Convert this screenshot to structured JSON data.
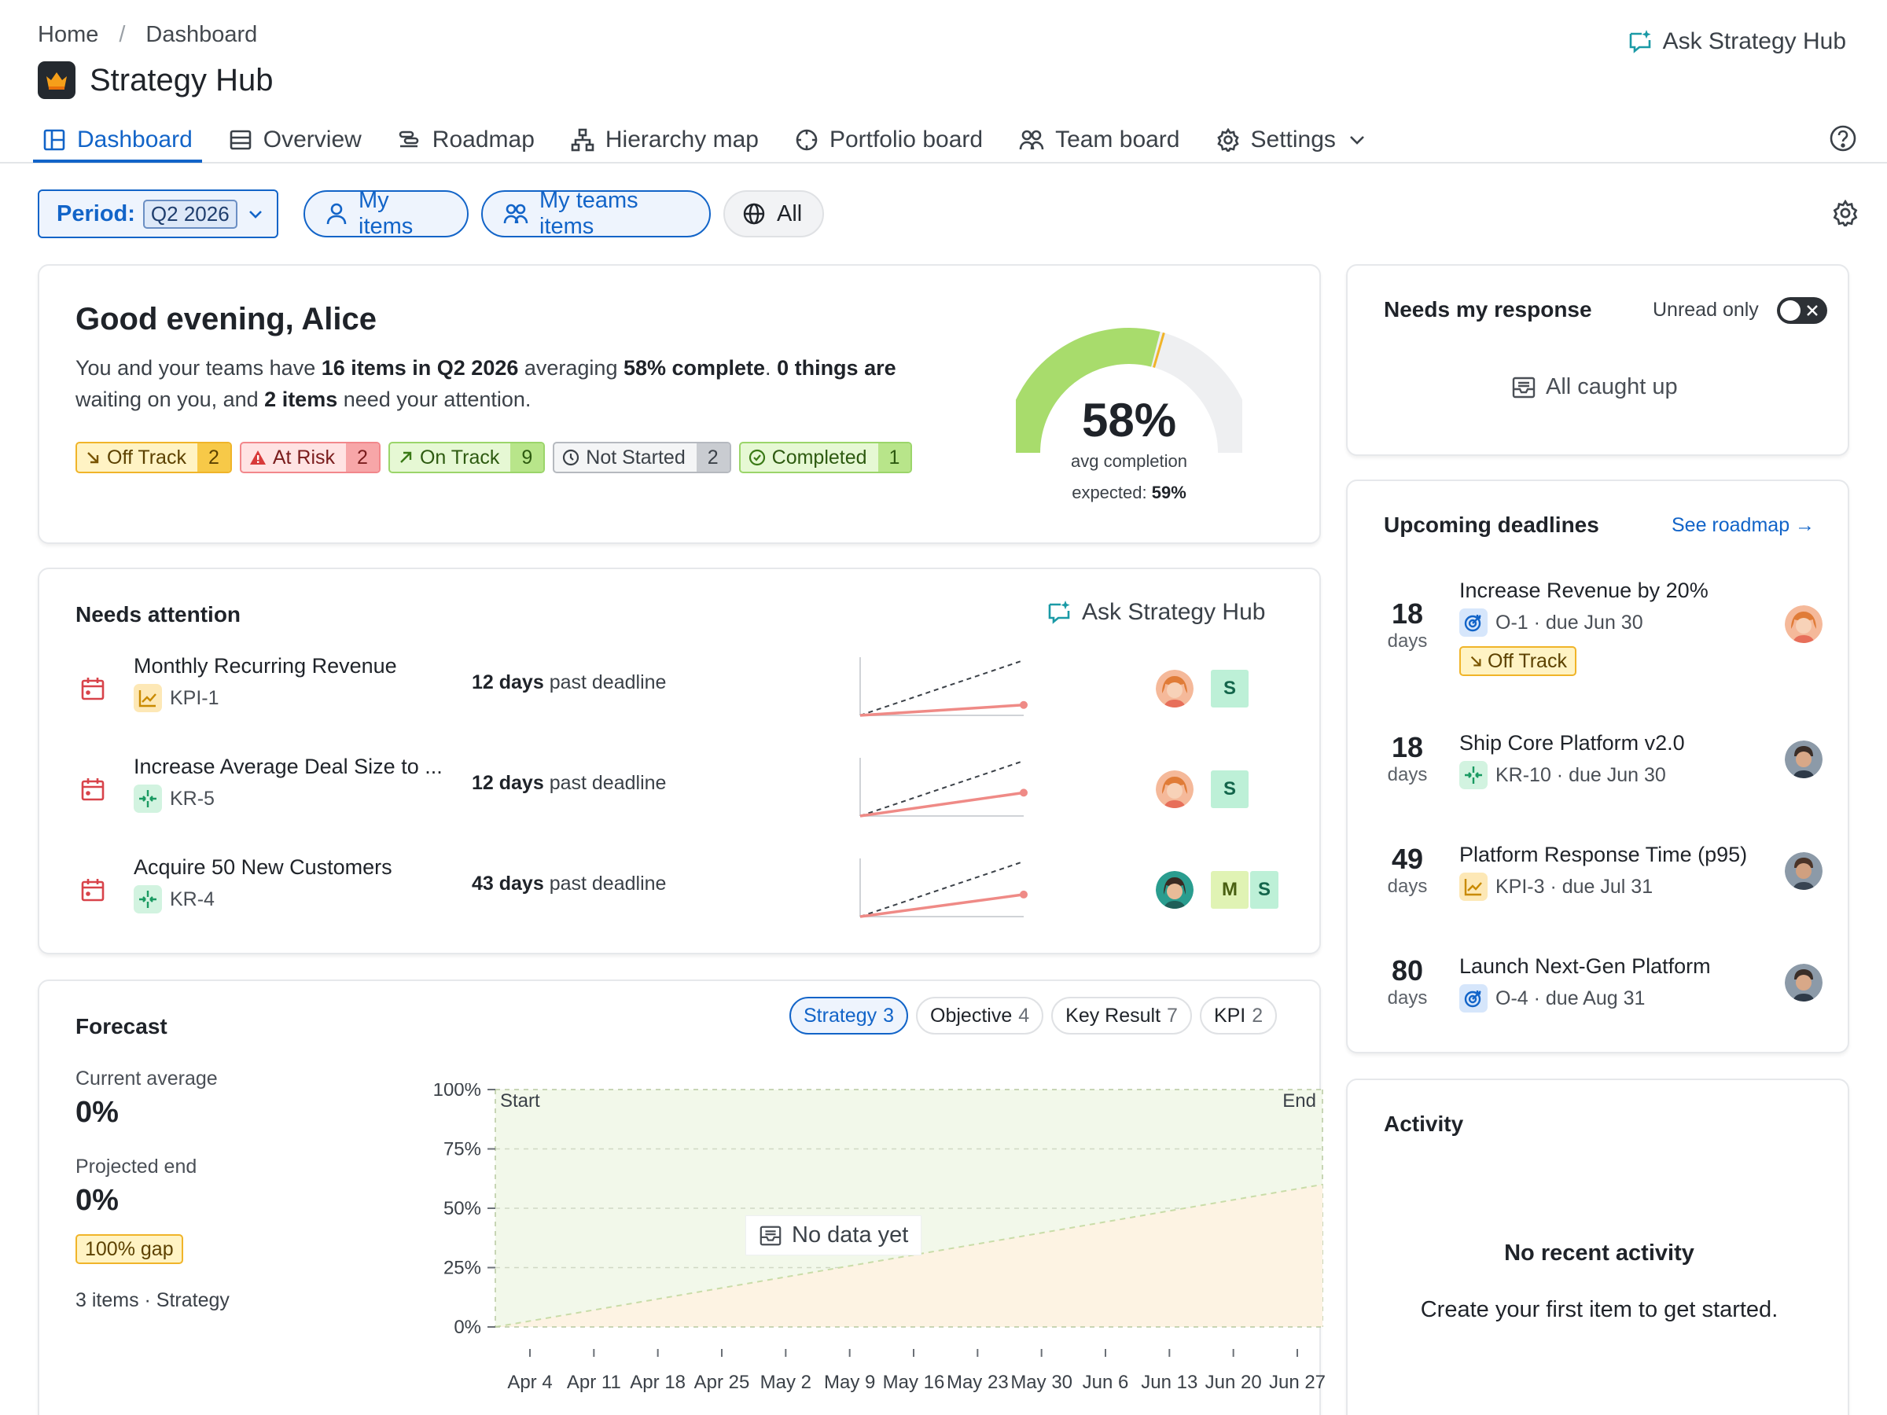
{
  "breadcrumb": [
    "Home",
    "Dashboard"
  ],
  "breadcrumb_sep": "/",
  "app": {
    "title": "Strategy Hub",
    "ask_label": "Ask Strategy Hub"
  },
  "tabs": [
    {
      "label": "Dashboard",
      "icon": "layout-icon",
      "active": true
    },
    {
      "label": "Overview",
      "icon": "list-icon"
    },
    {
      "label": "Roadmap",
      "icon": "roadmap-icon"
    },
    {
      "label": "Hierarchy map",
      "icon": "hierarchy-icon"
    },
    {
      "label": "Portfolio board",
      "icon": "compass-icon"
    },
    {
      "label": "Team board",
      "icon": "users-icon"
    },
    {
      "label": "Settings",
      "icon": "gear-icon"
    }
  ],
  "filters": {
    "period_label": "Period:",
    "period_value": "Q2 2026",
    "my_items": "My items",
    "my_teams_items": "My teams items",
    "all": "All"
  },
  "greeting": {
    "title": "Good evening, Alice",
    "t1": "You and your teams have ",
    "b1": "16 items in Q2 2026",
    "t2": " averaging ",
    "b2": "58% complete",
    "t3": ". ",
    "b3": "0 things are",
    "t4": " waiting on you, and ",
    "b4": "2 items",
    "t5": " need your attention.",
    "statuses": [
      {
        "label": "Off Track",
        "count": "2"
      },
      {
        "label": "At Risk",
        "count": "2"
      },
      {
        "label": "On Track",
        "count": "9"
      },
      {
        "label": "Not Started",
        "count": "2"
      },
      {
        "label": "Completed",
        "count": "1"
      }
    ],
    "gauge": {
      "value": 58,
      "expected": 59,
      "label": "58%",
      "sub": "avg completion",
      "expected_label": "expected:",
      "expected_value": "59%"
    }
  },
  "needs_response": {
    "title": "Needs my response",
    "unread_label": "Unread only",
    "empty": "All caught up"
  },
  "deadlines": {
    "title": "Upcoming deadlines",
    "link": "See roadmap →",
    "items": [
      {
        "days": "18",
        "unit": "days",
        "title": "Increase Revenue by 20%",
        "meta": "O-1 · due Jun 30",
        "kind": "objective",
        "badge": "Off Track"
      },
      {
        "days": "18",
        "unit": "days",
        "title": "Ship Core Platform v2.0",
        "meta": "KR-10 · due Jun 30",
        "kind": "key-result"
      },
      {
        "days": "49",
        "unit": "days",
        "title": "Platform Response Time (p95)",
        "meta": "KPI-3 · due Jul 31",
        "kind": "kpi"
      },
      {
        "days": "80",
        "unit": "days",
        "title": "Launch Next-Gen Platform",
        "meta": "O-4 · due Aug 31",
        "kind": "objective"
      }
    ]
  },
  "attention": {
    "title": "Needs attention",
    "ask_label": "Ask Strategy Hub",
    "items": [
      {
        "name": "Monthly Recurring Revenue",
        "code": "KPI-1",
        "kind": "kpi",
        "late_days": "12 days",
        "late_text": " past deadline",
        "teams": [
          "S"
        ],
        "progress": 0.17
      },
      {
        "name": "Increase Average Deal Size to ...",
        "code": "KR-5",
        "kind": "key-result",
        "late_days": "12 days",
        "late_text": " past deadline",
        "teams": [
          "S"
        ],
        "progress": 0.38
      },
      {
        "name": "Acquire 50 New Customers",
        "code": "KR-4",
        "kind": "key-result",
        "late_days": "43 days",
        "late_text": " past deadline",
        "teams": [
          "M",
          "S"
        ],
        "progress": 0.36
      }
    ]
  },
  "forecast": {
    "title": "Forecast",
    "segments": [
      {
        "label": "Strategy",
        "count": "3",
        "active": true
      },
      {
        "label": "Objective",
        "count": "4"
      },
      {
        "label": "Key Result",
        "count": "7"
      },
      {
        "label": "KPI",
        "count": "2"
      }
    ],
    "current_label": "Current average",
    "current_value": "0%",
    "projected_label": "Projected end",
    "projected_value": "0%",
    "gap": "100% gap",
    "items_text": "3 items · Strategy",
    "no_data": "No data yet",
    "start_label": "Start",
    "end_label": "End"
  },
  "chart_data": {
    "type": "area",
    "y_ticks": [
      "100%",
      "75%",
      "50%",
      "25%",
      "0%"
    ],
    "ylim": [
      0,
      100
    ],
    "x_ticks": [
      "Apr 4",
      "Apr 11",
      "Apr 18",
      "Apr 25",
      "May 2",
      "May 9",
      "May 16",
      "May 23",
      "May 30",
      "Jun 6",
      "Jun 13",
      "Jun 20",
      "Jun 27"
    ],
    "series": [
      {
        "x": [
          "Apr 1",
          "Jun 30"
        ],
        "values": [
          0,
          60
        ]
      }
    ]
  },
  "activity": {
    "title": "Activity",
    "empty_title": "No recent activity",
    "empty_sub": "Create your first item to get started."
  },
  "colors": {
    "accent": "#1264c8",
    "gauge_fill": "#a8dc6c",
    "off_track": "#f0b429",
    "trend_line": "#ef8a86"
  }
}
